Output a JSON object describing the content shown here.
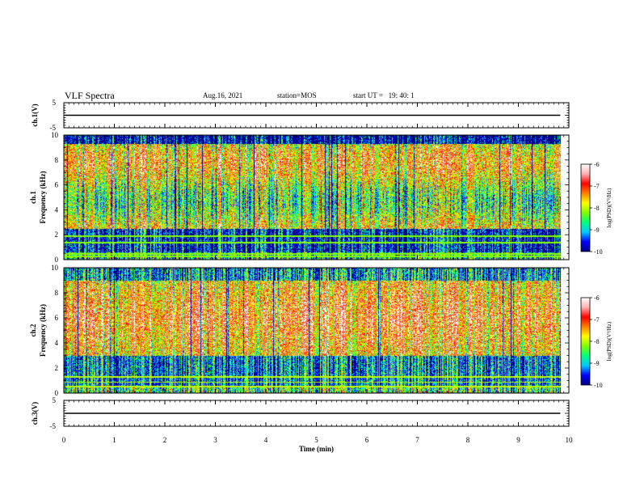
{
  "header": {
    "title": "VLF Spectra",
    "date": "Aug.16, 2021",
    "station": "station=MOS",
    "start": "start UT =   19: 40: 1"
  },
  "chart_data": [
    {
      "type": "line",
      "panel": "ch1-voltage",
      "ylabel": "ch.1(V)",
      "ylim": [
        -5,
        5
      ],
      "yticks": [
        "5",
        "-5"
      ],
      "series_level": 0
    },
    {
      "type": "heatmap",
      "panel": "ch1-spectrogram",
      "ylabel": "ch.1\nFrequency (kHz)",
      "ylabel_line1": "ch.1",
      "ylabel_line2": "Frequency (kHz)",
      "ylim": [
        0,
        10
      ],
      "yticks": [
        "0",
        "2",
        "4",
        "6",
        "8",
        "10"
      ],
      "colorbar": {
        "label": "log(PSD)(V²/Hz)",
        "ticks": [
          "-6",
          "-7",
          "-8",
          "-9",
          "-10"
        ],
        "range": [
          -10,
          -6
        ],
        "colormap": [
          "#00007f",
          "#0000ff",
          "#00c8ff",
          "#00ff80",
          "#80ff00",
          "#ffff00",
          "#ff8000",
          "#ff0000",
          "#ffb0b0",
          "#ffffff"
        ]
      }
    },
    {
      "type": "heatmap",
      "panel": "ch2-spectrogram",
      "ylabel": "ch.2\nFrequency (kHz)",
      "ylabel_line1": "ch.2",
      "ylabel_line2": "Frequency (kHz)",
      "ylim": [
        0,
        10
      ],
      "yticks": [
        "0",
        "2",
        "4",
        "6",
        "8",
        "10"
      ],
      "colorbar": {
        "label": "log(PSD)(V²/Hz)",
        "ticks": [
          "-6",
          "-7",
          "-8",
          "-9",
          "-10"
        ],
        "range": [
          -10,
          -6
        ],
        "colormap": [
          "#00007f",
          "#0000ff",
          "#00c8ff",
          "#00ff80",
          "#80ff00",
          "#ffff00",
          "#ff8000",
          "#ff0000",
          "#ffb0b0",
          "#ffffff"
        ]
      }
    },
    {
      "type": "line",
      "panel": "ch3-voltage",
      "ylabel": "ch.3(V)",
      "ylim": [
        -5,
        5
      ],
      "yticks": [
        "5",
        "-5"
      ],
      "series_level": 0
    }
  ],
  "xaxis": {
    "label": "Time (min)",
    "xlim": [
      0,
      10
    ],
    "ticks": [
      "0",
      "1",
      "2",
      "3",
      "4",
      "5",
      "6",
      "7",
      "8",
      "9",
      "10"
    ]
  }
}
